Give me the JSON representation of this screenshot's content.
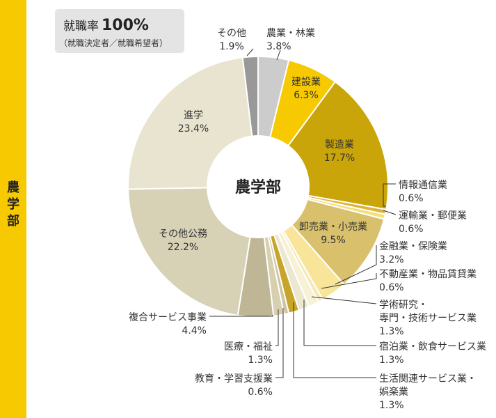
{
  "side_label": "農学部",
  "employment_rate": {
    "label": "就職率",
    "value": "100%",
    "note": "（就職決定者／就職希望者）"
  },
  "chart_data": {
    "type": "pie",
    "title": "農学部",
    "donut": true,
    "slices": [
      {
        "name": "農業・林業",
        "value": 3.8,
        "value_label": "3.8%",
        "color": "#cccccc"
      },
      {
        "name": "建設業",
        "value": 6.3,
        "value_label": "6.3%",
        "color": "#f6c900"
      },
      {
        "name": "製造業",
        "value": 17.7,
        "value_label": "17.7%",
        "color": "#c9a50a"
      },
      {
        "name": "情報通信業",
        "value": 0.6,
        "value_label": "0.6%",
        "color": "#dcb43a"
      },
      {
        "name": "運輸業・郵便業",
        "value": 0.6,
        "value_label": "0.6%",
        "color": "#f5df7a"
      },
      {
        "name": "卸売業・小売業",
        "value": 9.5,
        "value_label": "9.5%",
        "color": "#d8c06c"
      },
      {
        "name": "金融業・保険業",
        "value": 3.2,
        "value_label": "3.2%",
        "color": "#f8e59a"
      },
      {
        "name": "不動産業・物品賃貸業",
        "value": 0.6,
        "value_label": "0.6%",
        "color": "#f3e9b8"
      },
      {
        "name": "学術研究・\n専門・技術サービス業",
        "value": 1.3,
        "value_label": "1.3%",
        "color": "#f7f1d6"
      },
      {
        "name": "宿泊業・飲食サービス業",
        "value": 1.3,
        "value_label": "1.3%",
        "color": "#ece7d0"
      },
      {
        "name": "生活関連サービス業・\n娯楽業",
        "value": 1.3,
        "value_label": "1.3%",
        "color": "#c6a52a"
      },
      {
        "name": "教育・学習支援業",
        "value": 0.6,
        "value_label": "0.6%",
        "color": "#cfc5a1"
      },
      {
        "name": "医療・福祉",
        "value": 1.3,
        "value_label": "1.3%",
        "color": "#d7cfae"
      },
      {
        "name": "複合サービス事業",
        "value": 4.4,
        "value_label": "4.4%",
        "color": "#bfb696"
      },
      {
        "name": "その他公務",
        "value": 22.2,
        "value_label": "22.2%",
        "color": "#d7d1b6"
      },
      {
        "name": "進学",
        "value": 23.4,
        "value_label": "23.4%",
        "color": "#e8e4cf"
      },
      {
        "name": "その他",
        "value": 1.9,
        "value_label": "1.9%",
        "color": "#999999"
      }
    ]
  }
}
